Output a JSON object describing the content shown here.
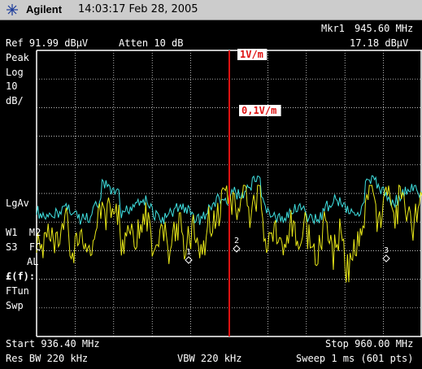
{
  "header": {
    "brand": "Agilent",
    "time_date": "14:03:17   Feb 28, 2005",
    "logo_icon": "agilent-spark-icon"
  },
  "marker": {
    "label": "Mkr1",
    "frequency": "945.60 MHz",
    "level": "17.18 dBµV"
  },
  "settings": {
    "ref": "Ref 91.99 dBµV",
    "atten": "Atten 10 dB",
    "start": "Start 936.40 MHz",
    "stop": "Stop 960.00 MHz",
    "res_bw": "Res BW 220 kHz",
    "vbw": "VBW 220 kHz",
    "sweep": "Sweep 1 ms (601 pts)"
  },
  "left_labels": {
    "peak": "Peak",
    "log": "Log",
    "scale_num": "10",
    "scale_unit": "dB/",
    "lgav": "LgAv",
    "w1m2": "W1  M2",
    "s3fc": "S3  FC",
    "al": "AL",
    "ff": "£(f):",
    "ftun": "FTun",
    "swp": "Swp"
  },
  "limit_labels": {
    "upper": "1V/m",
    "lower": "0,1V/m"
  },
  "marker_labels": [
    "1",
    "2",
    "3"
  ],
  "colors": {
    "background": "#000000",
    "grid": "#ffffff",
    "trace_cyan": "#3fe0e0",
    "trace_yellow": "#e8e818",
    "limit_line": "#dd1111",
    "titlebar": "#cccccc"
  }
}
